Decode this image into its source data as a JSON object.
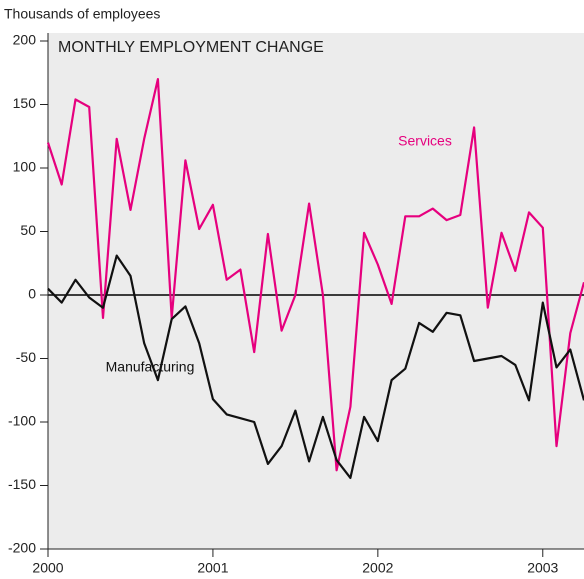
{
  "chart_data": {
    "type": "line",
    "title": "MONTHLY EMPLOYMENT CHANGE",
    "y_label": "Thousands of employees",
    "x": [
      0,
      1,
      2,
      3,
      4,
      5,
      6,
      7,
      8,
      9,
      10,
      11,
      12,
      13,
      14,
      15,
      16,
      17,
      18,
      19,
      20,
      21,
      22,
      23,
      24,
      25,
      26,
      27,
      28,
      29,
      30,
      31,
      32,
      33,
      34,
      35,
      36,
      37,
      38,
      39
    ],
    "xlim": [
      0,
      39
    ],
    "xticks": [
      {
        "value": 0,
        "label": "2000"
      },
      {
        "value": 12,
        "label": "2001"
      },
      {
        "value": 24,
        "label": "2002"
      },
      {
        "value": 36,
        "label": "2003"
      }
    ],
    "ylim": [
      -200,
      200
    ],
    "yticks": [
      -200,
      -150,
      -100,
      -50,
      0,
      50,
      100,
      150,
      200
    ],
    "series": [
      {
        "name": "Services",
        "color": "#e6007e",
        "values": [
          120,
          87,
          154,
          148,
          -18,
          123,
          67,
          123,
          170,
          -18,
          106,
          52,
          71,
          12,
          20,
          -45,
          48,
          -28,
          0,
          72,
          0,
          -138,
          -88,
          49,
          24,
          -7,
          62,
          62,
          68,
          59,
          63,
          132,
          -10,
          49,
          19,
          65,
          53,
          -119,
          -30,
          10
        ]
      },
      {
        "name": "Manufacturing",
        "color": "#111111",
        "values": [
          5,
          -6,
          12,
          -2,
          -10,
          31,
          15,
          -38,
          -67,
          -19,
          -9,
          -38,
          -82,
          -94,
          -97,
          -100,
          -133,
          -119,
          -91,
          -131,
          -96,
          -130,
          -144,
          -96,
          -115,
          -67,
          -58,
          -22,
          -29,
          -14,
          -16,
          -52,
          -50,
          -48,
          -55,
          -83,
          -6,
          -57,
          -43,
          -83
        ]
      }
    ]
  }
}
